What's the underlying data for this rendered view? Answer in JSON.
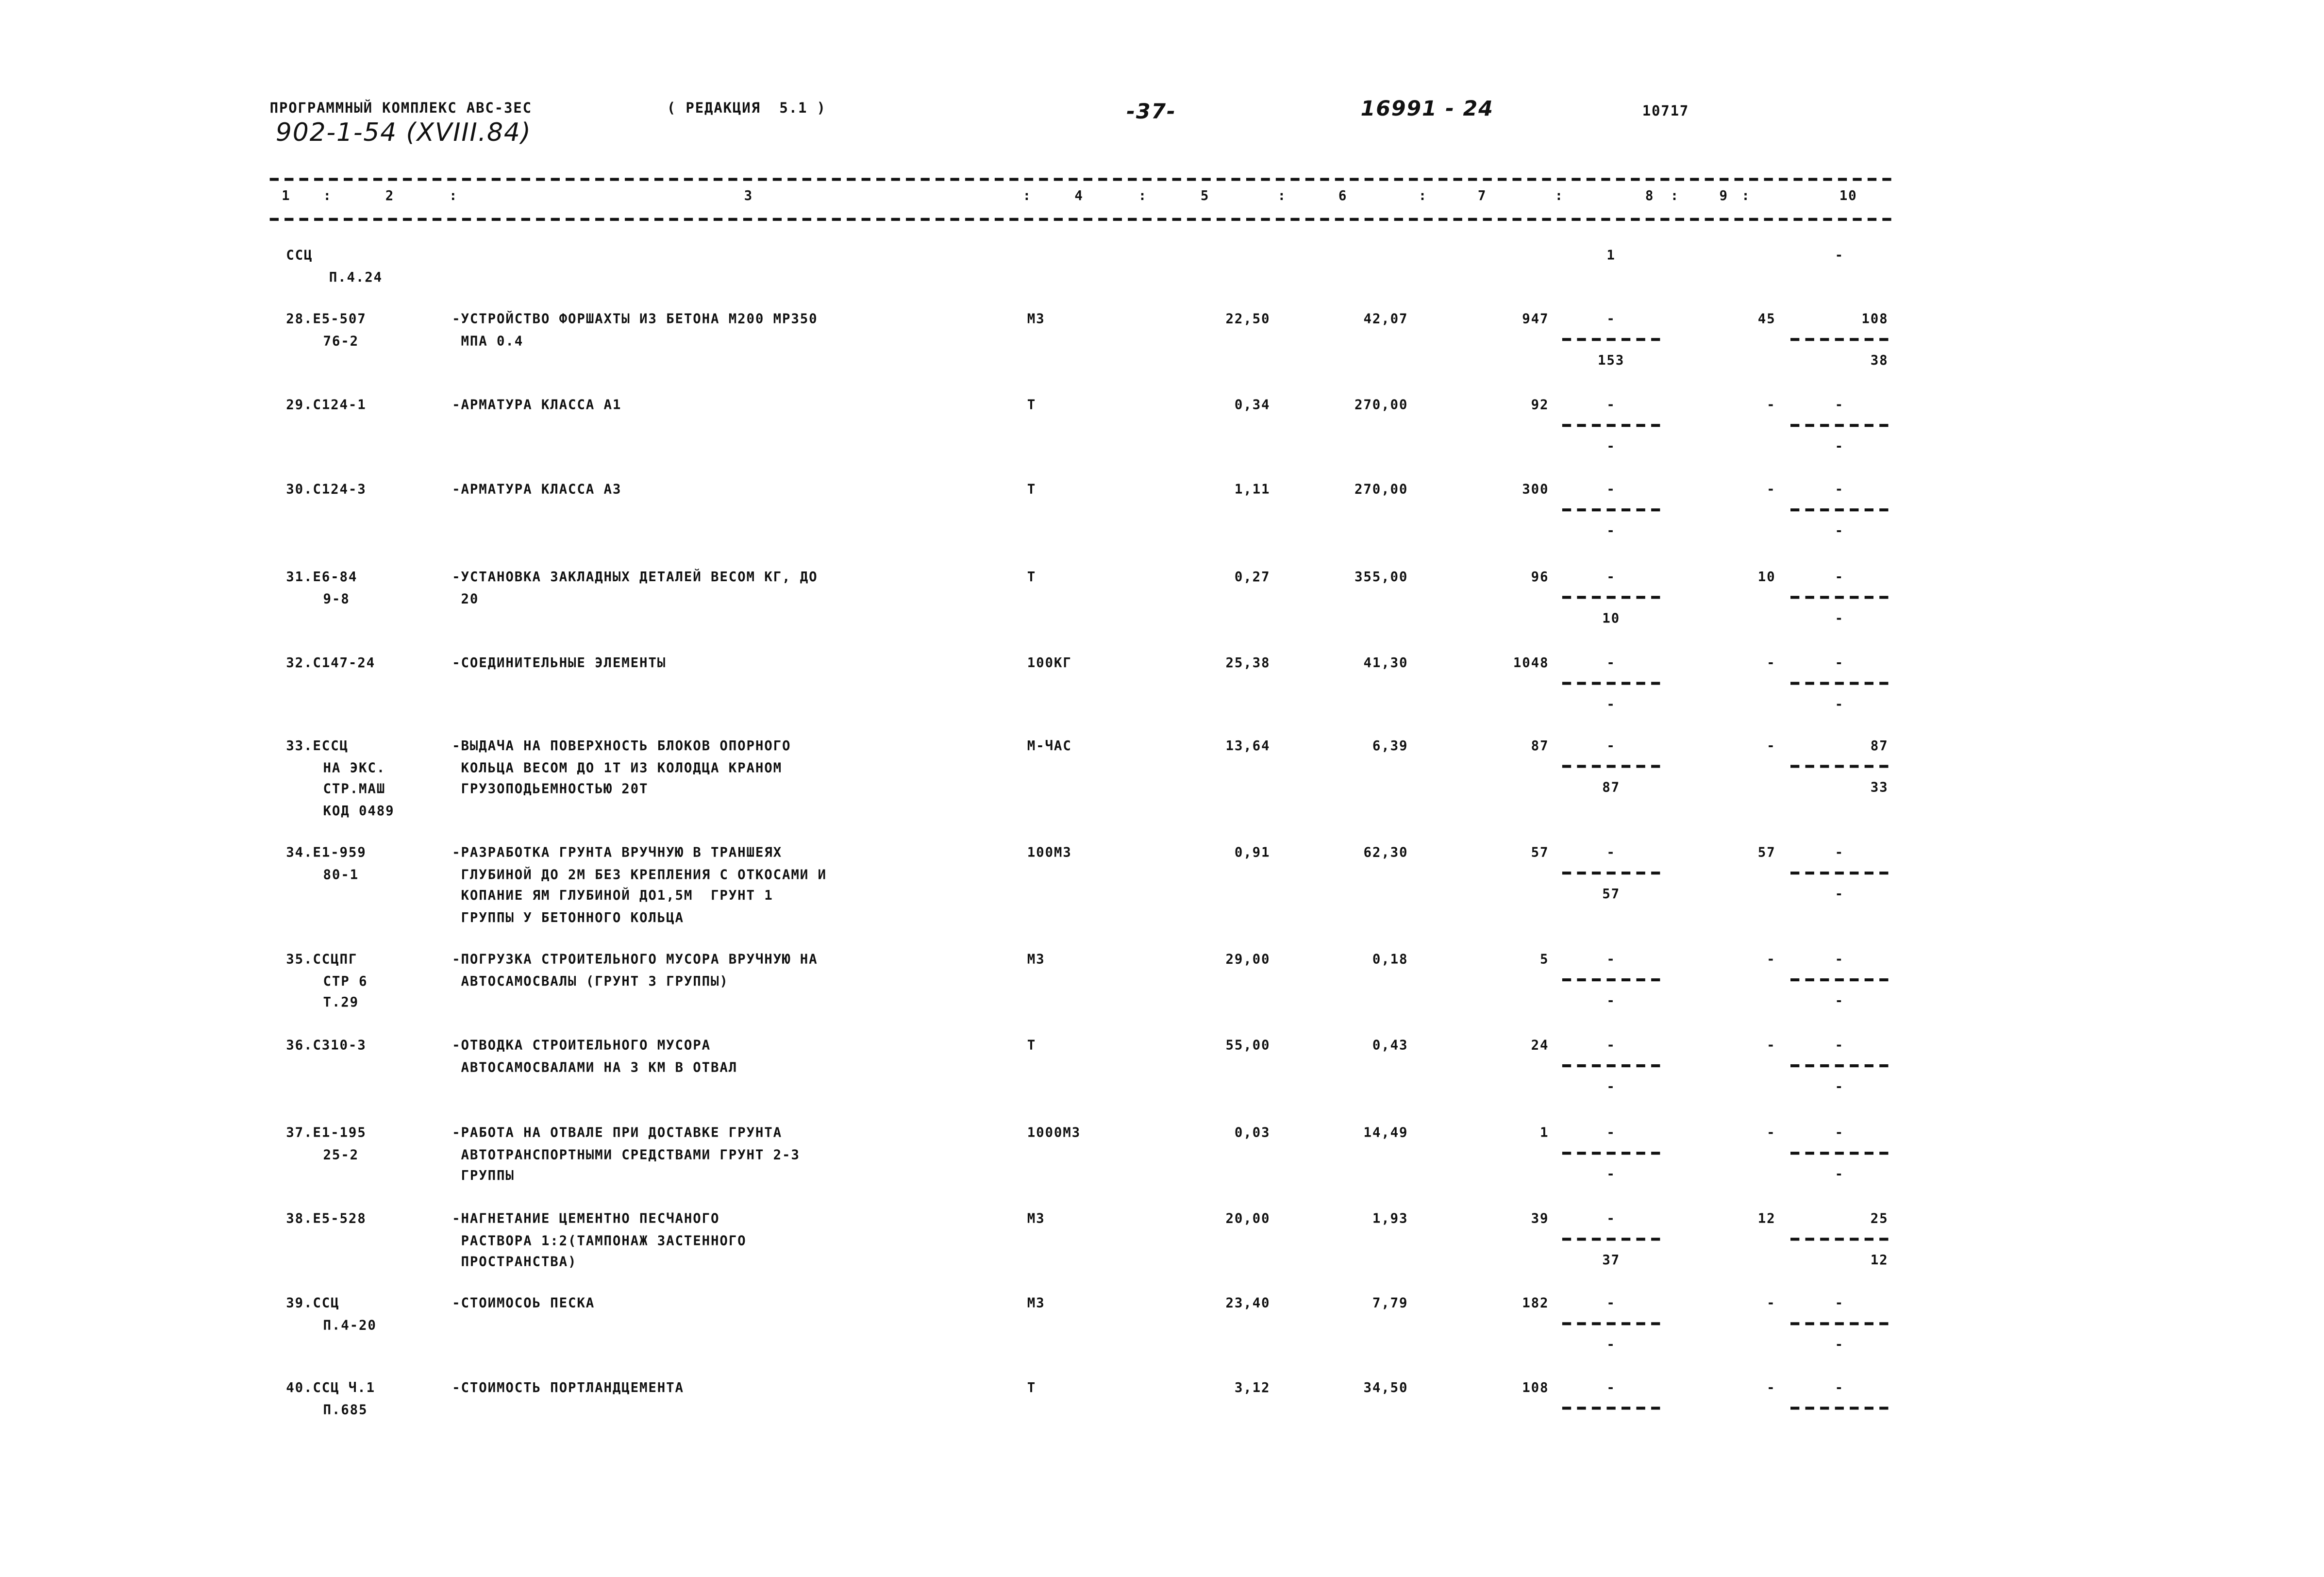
{
  "header": {
    "program": "ПРОГРАММНЫЙ КОМПЛЕКС АВС-3ЕС",
    "edition": "( РЕДАКЦИЯ  5.1 )",
    "page_number": "-37-",
    "doc_ref": "16991 - 24",
    "code": "10717",
    "project": "902-1-54 (XVIII.84)"
  },
  "columns": [
    "1",
    "2",
    "3",
    "4",
    "5",
    "6",
    "7",
    "8",
    "9",
    "10"
  ],
  "rows": [
    {
      "code": [
        "ССЦ",
        "П.4.24"
      ],
      "desc": [],
      "unit": "",
      "qty": "",
      "price": "",
      "total": "",
      "c8": {
        "top": "1"
      },
      "c9": "",
      "c10": {
        "top": "-"
      }
    },
    {
      "code": [
        "28.Е5-507",
        "76-2"
      ],
      "desc": [
        "-УСТРОЙСТВО ФОРШАХТЫ ИЗ БЕТОНА М200 МР350",
        "МПА 0.4"
      ],
      "unit": "М3",
      "qty": "22,50",
      "price": "42,07",
      "total": "947",
      "c8": {
        "top": "-",
        "bottom": "153"
      },
      "c9": "45",
      "c10": {
        "top": "108",
        "bottom": "38"
      }
    },
    {
      "code": [
        "29.С124-1"
      ],
      "desc": [
        "-АРМАТУРА КЛАССА А1"
      ],
      "unit": "Т",
      "qty": "0,34",
      "price": "270,00",
      "total": "92",
      "c8": {
        "top": "-",
        "bottom": "-"
      },
      "c9": "-",
      "c10": {
        "top": "-",
        "bottom": "-"
      }
    },
    {
      "code": [
        "30.С124-3"
      ],
      "desc": [
        "-АРМАТУРА КЛАССА А3"
      ],
      "unit": "Т",
      "qty": "1,11",
      "price": "270,00",
      "total": "300",
      "c8": {
        "top": "-",
        "bottom": "-"
      },
      "c9": "-",
      "c10": {
        "top": "-",
        "bottom": "-"
      }
    },
    {
      "code": [
        "31.Е6-84",
        "9-8"
      ],
      "desc": [
        "-УСТАНОВКА ЗАКЛАДНЫХ ДЕТАЛЕЙ ВЕСОМ КГ, ДО",
        "20"
      ],
      "unit": "Т",
      "qty": "0,27",
      "price": "355,00",
      "total": "96",
      "c8": {
        "top": "-",
        "bottom": "10"
      },
      "c9": "10",
      "c10": {
        "top": "-",
        "bottom": "-"
      }
    },
    {
      "code": [
        "32.С147-24"
      ],
      "desc": [
        "-СОЕДИНИТЕЛЬНЫЕ ЭЛЕМЕНТЫ"
      ],
      "unit": "100КГ",
      "qty": "25,38",
      "price": "41,30",
      "total": "1048",
      "c8": {
        "top": "-",
        "bottom": "-"
      },
      "c9": "-",
      "c10": {
        "top": "-",
        "bottom": "-"
      }
    },
    {
      "code": [
        "33.ЕССЦ",
        "НА ЭКС.",
        "СТР.МАШ",
        "КОД 0489"
      ],
      "desc": [
        "-ВЫДАЧА НА ПОВЕРХНОСТЬ БЛОКОВ ОПОРНОГО",
        "КОЛЬЦА ВЕСОМ ДО 1Т ИЗ КОЛОДЦА КРАНОМ",
        "ГРУЗОПОДЬЕМНОСТЬЮ 20Т"
      ],
      "unit": "М-ЧАС",
      "qty": "13,64",
      "price": "6,39",
      "total": "87",
      "c8": {
        "top": "-",
        "bottom": "87"
      },
      "c9": "-",
      "c10": {
        "top": "87",
        "bottom": "33"
      }
    },
    {
      "code": [
        "34.Е1-959",
        "80-1"
      ],
      "desc": [
        "-РАЗРАБОТКА ГРУНТА ВРУЧНУЮ В ТРАНШЕЯХ",
        "ГЛУБИНОЙ ДО 2М БЕЗ КРЕПЛЕНИЯ С ОТКОСАМИ И",
        "КОПАНИЕ ЯМ ГЛУБИНОЙ ДО1,5М  ГРУНТ 1",
        "ГРУППЫ У БЕТОННОГО КОЛЬЦА"
      ],
      "unit": "100М3",
      "qty": "0,91",
      "price": "62,30",
      "total": "57",
      "c8": {
        "top": "-",
        "bottom": "57"
      },
      "c9": "57",
      "c10": {
        "top": "-",
        "bottom": "-"
      }
    },
    {
      "code": [
        "35.ССЦПГ",
        "СТР 6",
        "Т.29"
      ],
      "desc": [
        "-ПОГРУЗКА СТРОИТЕЛЬНОГО МУСОРА ВРУЧНУЮ НА",
        "АВТОСАМОСВАЛЫ (ГРУНТ 3 ГРУППЫ)"
      ],
      "unit": "М3",
      "qty": "29,00",
      "price": "0,18",
      "total": "5",
      "c8": {
        "top": "-",
        "bottom": "-"
      },
      "c9": "-",
      "c10": {
        "top": "-",
        "bottom": "-"
      }
    },
    {
      "code": [
        "36.С310-3"
      ],
      "desc": [
        "-ОТВОДКА СТРОИТЕЛЬНОГО МУСОРА",
        "АВТОСАМОСВАЛАМИ НА 3 КМ В ОТВАЛ"
      ],
      "unit": "Т",
      "qty": "55,00",
      "price": "0,43",
      "total": "24",
      "c8": {
        "top": "-",
        "bottom": "-"
      },
      "c9": "-",
      "c10": {
        "top": "-",
        "bottom": "-"
      }
    },
    {
      "code": [
        "37.Е1-195",
        "25-2"
      ],
      "desc": [
        "-РАБОТА НА ОТВАЛЕ ПРИ ДОСТАВКЕ ГРУНТА",
        "АВТОТРАНСПОРТНЫМИ СРЕДСТВАМИ ГРУНТ 2-3",
        "ГРУППЫ"
      ],
      "unit": "1000М3",
      "qty": "0,03",
      "price": "14,49",
      "total": "1",
      "c8": {
        "top": "-",
        "bottom": "-"
      },
      "c9": "-",
      "c10": {
        "top": "-",
        "bottom": "-"
      }
    },
    {
      "code": [
        "38.Е5-528"
      ],
      "desc": [
        "-НАГНЕТАНИЕ ЦЕМЕНТНО ПЕСЧАНОГО",
        "РАСТВОРА 1:2(ТАМПОНАЖ ЗАСТЕННОГО",
        "ПРОСТРАНСТВА)"
      ],
      "unit": "М3",
      "qty": "20,00",
      "price": "1,93",
      "total": "39",
      "c8": {
        "top": "-",
        "bottom": "37"
      },
      "c9": "12",
      "c10": {
        "top": "25",
        "bottom": "12"
      }
    },
    {
      "code": [
        "39.ССЦ",
        "П.4-20"
      ],
      "desc": [
        "-СТОИМОСОЬ ПЕСКА"
      ],
      "unit": "М3",
      "qty": "23,40",
      "price": "7,79",
      "total": "182",
      "c8": {
        "top": "-",
        "bottom": "-"
      },
      "c9": "-",
      "c10": {
        "top": "-",
        "bottom": "-"
      }
    },
    {
      "code": [
        "40.ССЦ Ч.1",
        "П.685"
      ],
      "desc": [
        "-СТОИМОСТЬ ПОРТЛАНДЦЕМЕНТА"
      ],
      "unit": "Т",
      "qty": "3,12",
      "price": "34,50",
      "total": "108",
      "c8": {
        "top": "-",
        "bottom": ""
      },
      "c9": "-",
      "c10": {
        "top": "-",
        "bottom": ""
      }
    }
  ]
}
